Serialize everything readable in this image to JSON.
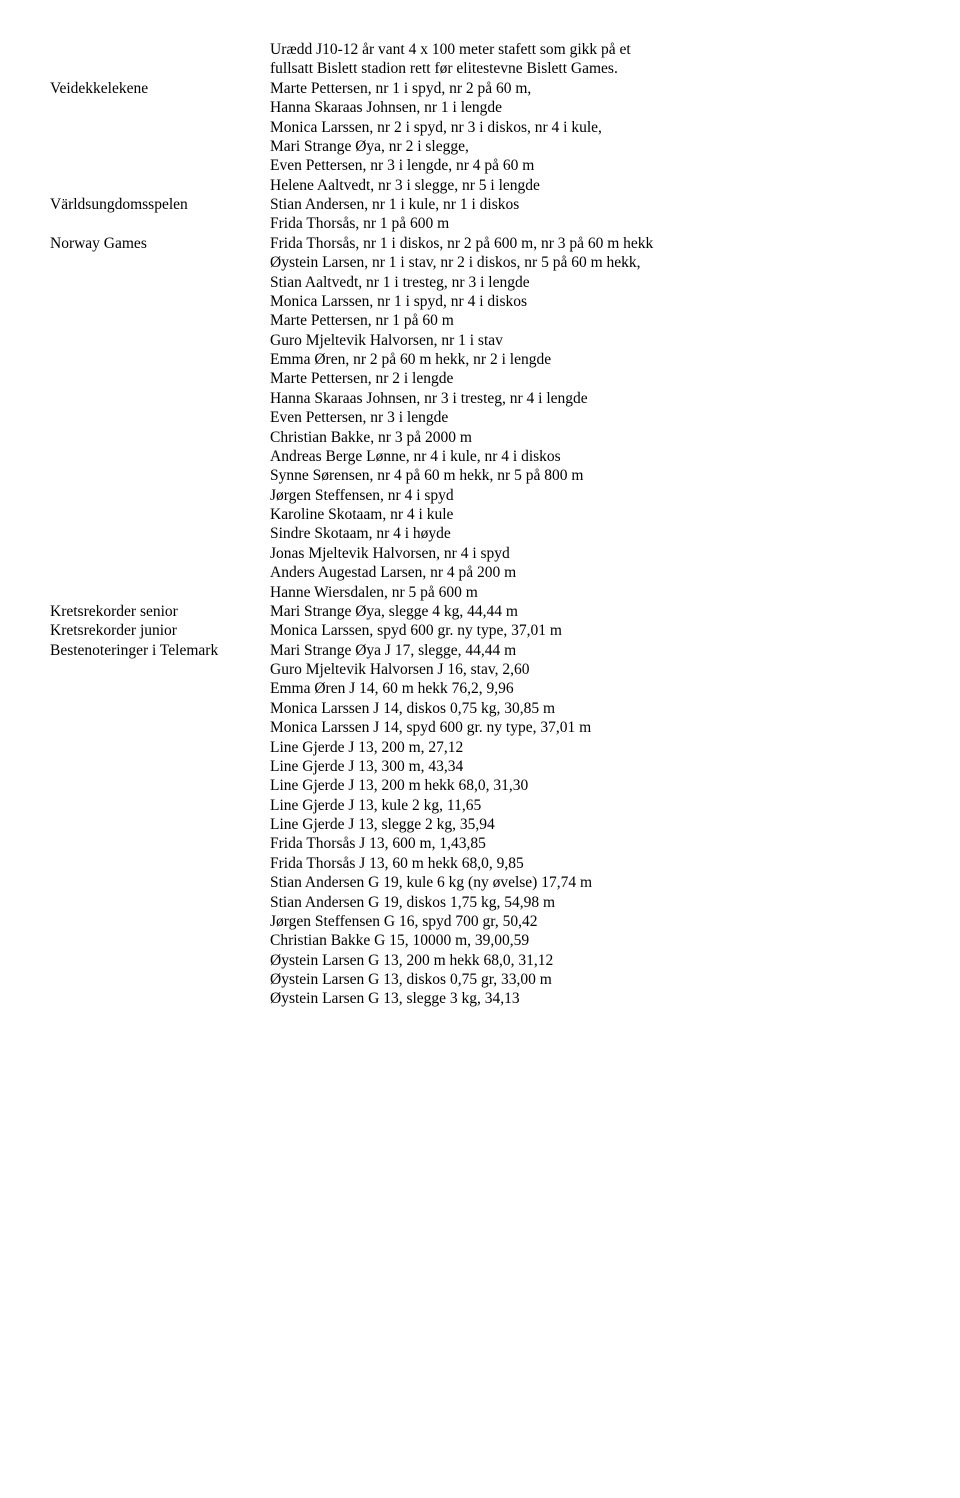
{
  "rows": [
    {
      "label": "",
      "lines": [
        "Urædd J10-12 år vant 4 x 100 meter stafett som gikk på et",
        "fullsatt Bislett stadion rett før elitestevne Bislett Games."
      ]
    },
    {
      "label": "Veidekkelekene",
      "lines": [
        "Marte Pettersen, nr 1 i spyd, nr 2 på 60 m,",
        "Hanna Skaraas Johnsen, nr 1 i lengde",
        "Monica Larssen, nr 2 i spyd, nr 3 i diskos, nr 4 i kule,",
        "Mari Strange Øya, nr 2 i slegge,",
        "Even Pettersen, nr 3 i lengde, nr 4 på 60 m",
        "Helene Aaltvedt, nr 3 i slegge, nr 5 i lengde"
      ]
    },
    {
      "label": "Världsungdomsspelen",
      "lines": [
        "Stian Andersen, nr 1 i kule, nr 1 i diskos",
        "Frida Thorsås, nr 1 på 600 m"
      ]
    },
    {
      "label": "Norway Games",
      "lines": [
        "Frida Thorsås, nr 1 i diskos, nr 2 på 600 m, nr 3 på 60 m hekk",
        "Øystein Larsen, nr 1 i stav, nr 2 i diskos, nr 5 på 60 m hekk,",
        "Stian Aaltvedt, nr 1 i tresteg, nr 3 i lengde",
        "Monica Larssen, nr 1 i spyd, nr 4 i diskos",
        "Marte Pettersen, nr 1 på 60 m",
        "Guro Mjeltevik Halvorsen, nr 1 i stav",
        "Emma Øren, nr 2 på 60 m hekk, nr 2 i lengde",
        "Marte Pettersen, nr 2 i lengde",
        "Hanna Skaraas Johnsen, nr 3 i tresteg, nr 4 i lengde",
        "Even Pettersen, nr 3 i lengde",
        "Christian Bakke, nr 3 på 2000 m",
        "Andreas Berge Lønne, nr 4 i kule, nr 4 i diskos",
        "Synne Sørensen, nr 4 på 60 m hekk, nr 5 på 800 m",
        "Jørgen Steffensen, nr 4 i spyd",
        "Karoline Skotaam, nr 4 i kule",
        "Sindre Skotaam, nr 4 i høyde",
        "Jonas Mjeltevik Halvorsen, nr 4 i spyd",
        "Anders Augestad Larsen, nr 4 på 200 m",
        "Hanne Wiersdalen, nr 5 på 600 m"
      ]
    },
    {
      "label": "Kretsrekorder senior",
      "lines": [
        "Mari Strange Øya, slegge 4 kg, 44,44 m"
      ]
    },
    {
      "label": "Kretsrekorder junior",
      "lines": [
        "Monica Larssen, spyd 600 gr. ny type, 37,01 m"
      ]
    },
    {
      "label": "Bestenoteringer i Telemark",
      "lines": [
        "Mari Strange Øya J 17, slegge, 44,44 m",
        "Guro Mjeltevik Halvorsen J 16, stav, 2,60",
        "Emma Øren J 14, 60 m hekk 76,2, 9,96",
        "Monica Larssen J 14, diskos 0,75 kg, 30,85 m",
        "Monica Larssen J 14, spyd 600 gr. ny type, 37,01 m",
        "Line Gjerde J 13, 200 m, 27,12",
        "Line Gjerde J 13, 300 m, 43,34",
        "Line Gjerde J 13, 200 m hekk 68,0, 31,30",
        "Line Gjerde J 13, kule 2 kg, 11,65",
        "Line Gjerde J 13, slegge 2 kg, 35,94",
        "Frida Thorsås J 13, 600 m, 1,43,85",
        "Frida Thorsås J 13, 60 m hekk 68,0, 9,85",
        "Stian Andersen G 19, kule 6 kg (ny øvelse) 17,74 m",
        "Stian Andersen G 19, diskos 1,75 kg, 54,98 m",
        "Jørgen Steffensen G 16, spyd 700 gr, 50,42",
        "Christian Bakke G 15, 10000 m, 39,00,59",
        "Øystein Larsen G 13, 200 m hekk 68,0, 31,12",
        "Øystein Larsen G 13, diskos 0,75 gr, 33,00 m",
        "Øystein Larsen G 13, slegge 3 kg, 34,13"
      ]
    }
  ]
}
